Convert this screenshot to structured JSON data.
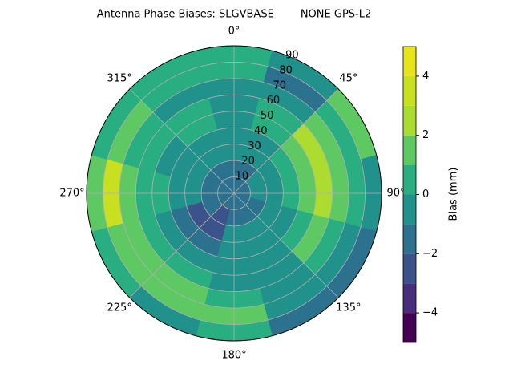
{
  "chart_data": {
    "type": "polar_contour",
    "title": "Antenna Phase Biases: SLGVBASE        NONE GPS-L2",
    "colorbar_label": "Bias (mm)",
    "azimuth": [
      0,
      30,
      60,
      90,
      120,
      150,
      180,
      210,
      240,
      270,
      300,
      330
    ],
    "radius_bins": [
      0,
      10,
      20,
      30,
      40,
      50,
      60,
      70,
      80,
      90
    ],
    "z": [
      [
        -1.5,
        -1.5,
        -0.5,
        -0.5,
        -0.5,
        -0.5,
        -0.5,
        0.5,
        0.5
      ],
      [
        -1.5,
        -1.5,
        -0.5,
        -0.5,
        0.5,
        0.5,
        -0.5,
        -1.5,
        -0.5
      ],
      [
        -1.5,
        -0.5,
        -0.5,
        0.5,
        1.5,
        2.5,
        1.5,
        0.5,
        1.5
      ],
      [
        -1.5,
        -0.5,
        -0.5,
        0.5,
        1.5,
        2.5,
        1.5,
        0.5,
        -0.5
      ],
      [
        -1.5,
        -1.5,
        -0.5,
        -0.5,
        0.5,
        1.5,
        0.5,
        -0.5,
        -1.5
      ],
      [
        -1.5,
        -1.5,
        -0.5,
        -0.5,
        -0.5,
        -0.5,
        -0.5,
        -0.5,
        -1.5
      ],
      [
        -1.5,
        -1.5,
        -0.5,
        -0.5,
        -0.5,
        -0.5,
        0.5,
        1.5,
        0.5
      ],
      [
        -1.5,
        -2.5,
        -2.5,
        -1.5,
        -0.5,
        0.5,
        1.5,
        1.5,
        -0.5
      ],
      [
        -1.5,
        -1.5,
        -2.5,
        -1.5,
        -0.5,
        0.5,
        1.5,
        1.5,
        0.5
      ],
      [
        -1.5,
        -1.5,
        -0.5,
        -0.5,
        0.5,
        0.5,
        1.5,
        3.5,
        1.5
      ],
      [
        -1.5,
        -1.5,
        -0.5,
        -0.5,
        -0.5,
        0.5,
        0.5,
        1.5,
        0.5
      ],
      [
        -1.5,
        -1.5,
        -0.5,
        -0.5,
        0.5,
        0.5,
        -0.5,
        0.5,
        0.5
      ]
    ],
    "levels": [
      -5,
      -4,
      -3,
      -2,
      -1,
      0,
      1,
      2,
      3,
      4,
      5
    ],
    "colors": [
      "#440154",
      "#472d7b",
      "#3b528b",
      "#2c728e",
      "#21918c",
      "#28ae80",
      "#5ec962",
      "#addc30",
      "#c8e020",
      "#e8e419"
    ],
    "rlim": [
      0,
      90
    ],
    "rticks": [
      10,
      20,
      30,
      40,
      50,
      60,
      70,
      80,
      90
    ],
    "thetaticks": [
      {
        "value": 0,
        "label": "0°"
      },
      {
        "value": 45,
        "label": "45°"
      },
      {
        "value": 90,
        "label": "90°"
      },
      {
        "value": 135,
        "label": "135°"
      },
      {
        "value": 180,
        "label": "180°"
      },
      {
        "value": 225,
        "label": "225°"
      },
      {
        "value": 270,
        "label": "270°"
      },
      {
        "value": 315,
        "label": "315°"
      }
    ],
    "cticks": [
      {
        "value": -4,
        "label": "−4"
      },
      {
        "value": -2,
        "label": "−2"
      },
      {
        "value": 0,
        "label": "0"
      },
      {
        "value": 2,
        "label": "2"
      },
      {
        "value": 4,
        "label": "4"
      }
    ],
    "grid": true
  }
}
